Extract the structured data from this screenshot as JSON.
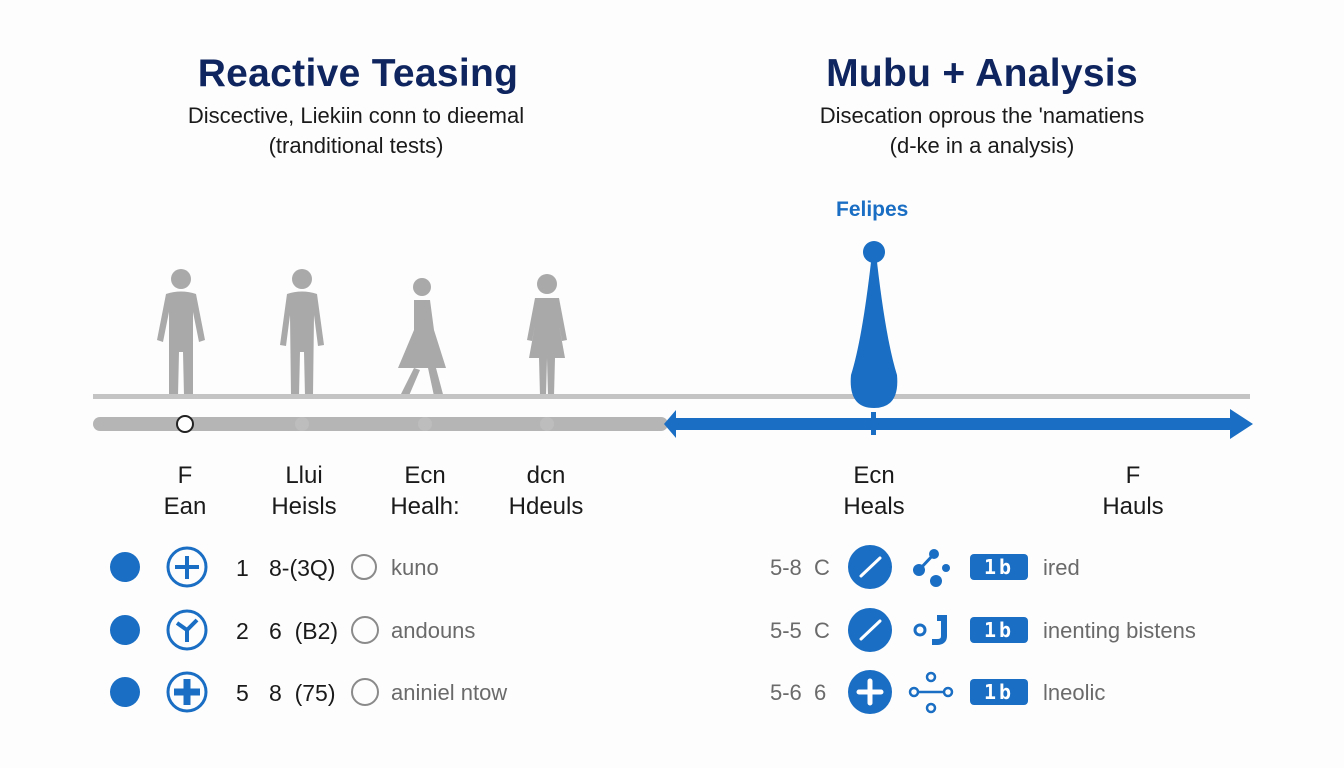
{
  "left": {
    "title": "Reactive Teasing",
    "subtitle_line1": "Discective, Liekiin conn to dieemal",
    "subtitle_line2": "(tranditional tests)",
    "milestones": [
      {
        "top": "F",
        "bottom": "Ean"
      },
      {
        "top": "Llui",
        "bottom": "Heisls"
      },
      {
        "top": "Ecn",
        "bottom": "Healh:"
      },
      {
        "top": "dcn",
        "bottom": "Hdeuls"
      }
    ],
    "rows": [
      {
        "num": "1",
        "code": "8-(3Q)",
        "label": "kuno",
        "icon": "plus-circle-icon"
      },
      {
        "num": "2",
        "code": "6  (B2)",
        "label": "andouns",
        "icon": "plus-circle-icon"
      },
      {
        "num": "5",
        "code": "8  (75)",
        "label": "aniniel ntow",
        "icon": "plus-circle-icon"
      }
    ]
  },
  "right": {
    "title": "Mubu + Analysis",
    "subtitle_line1": "Disecation oprous the 'namatiens",
    "subtitle_line2": "(d-ke in a analysis)",
    "marker_label": "Felipes",
    "milestones": [
      {
        "top": "Ecn",
        "bottom": "Heals"
      },
      {
        "top": "F",
        "bottom": "Hauls"
      }
    ],
    "rows": [
      {
        "code": "5-8  C",
        "badge": "1b",
        "label": "ired",
        "icon": "pencil-icon",
        "icon2": "network-icon"
      },
      {
        "code": "5-5  C",
        "badge": "1b",
        "label": "inenting bistens",
        "icon": "pencil-icon",
        "icon2": "node-link-icon"
      },
      {
        "code": "5-6  6",
        "badge": "1b",
        "label": "lneolic",
        "icon": "plus-icon",
        "icon2": "branch-icon"
      }
    ]
  },
  "colors": {
    "accent": "#1a6ec3",
    "title": "#0f2560",
    "gray": "#a8a8a8"
  }
}
